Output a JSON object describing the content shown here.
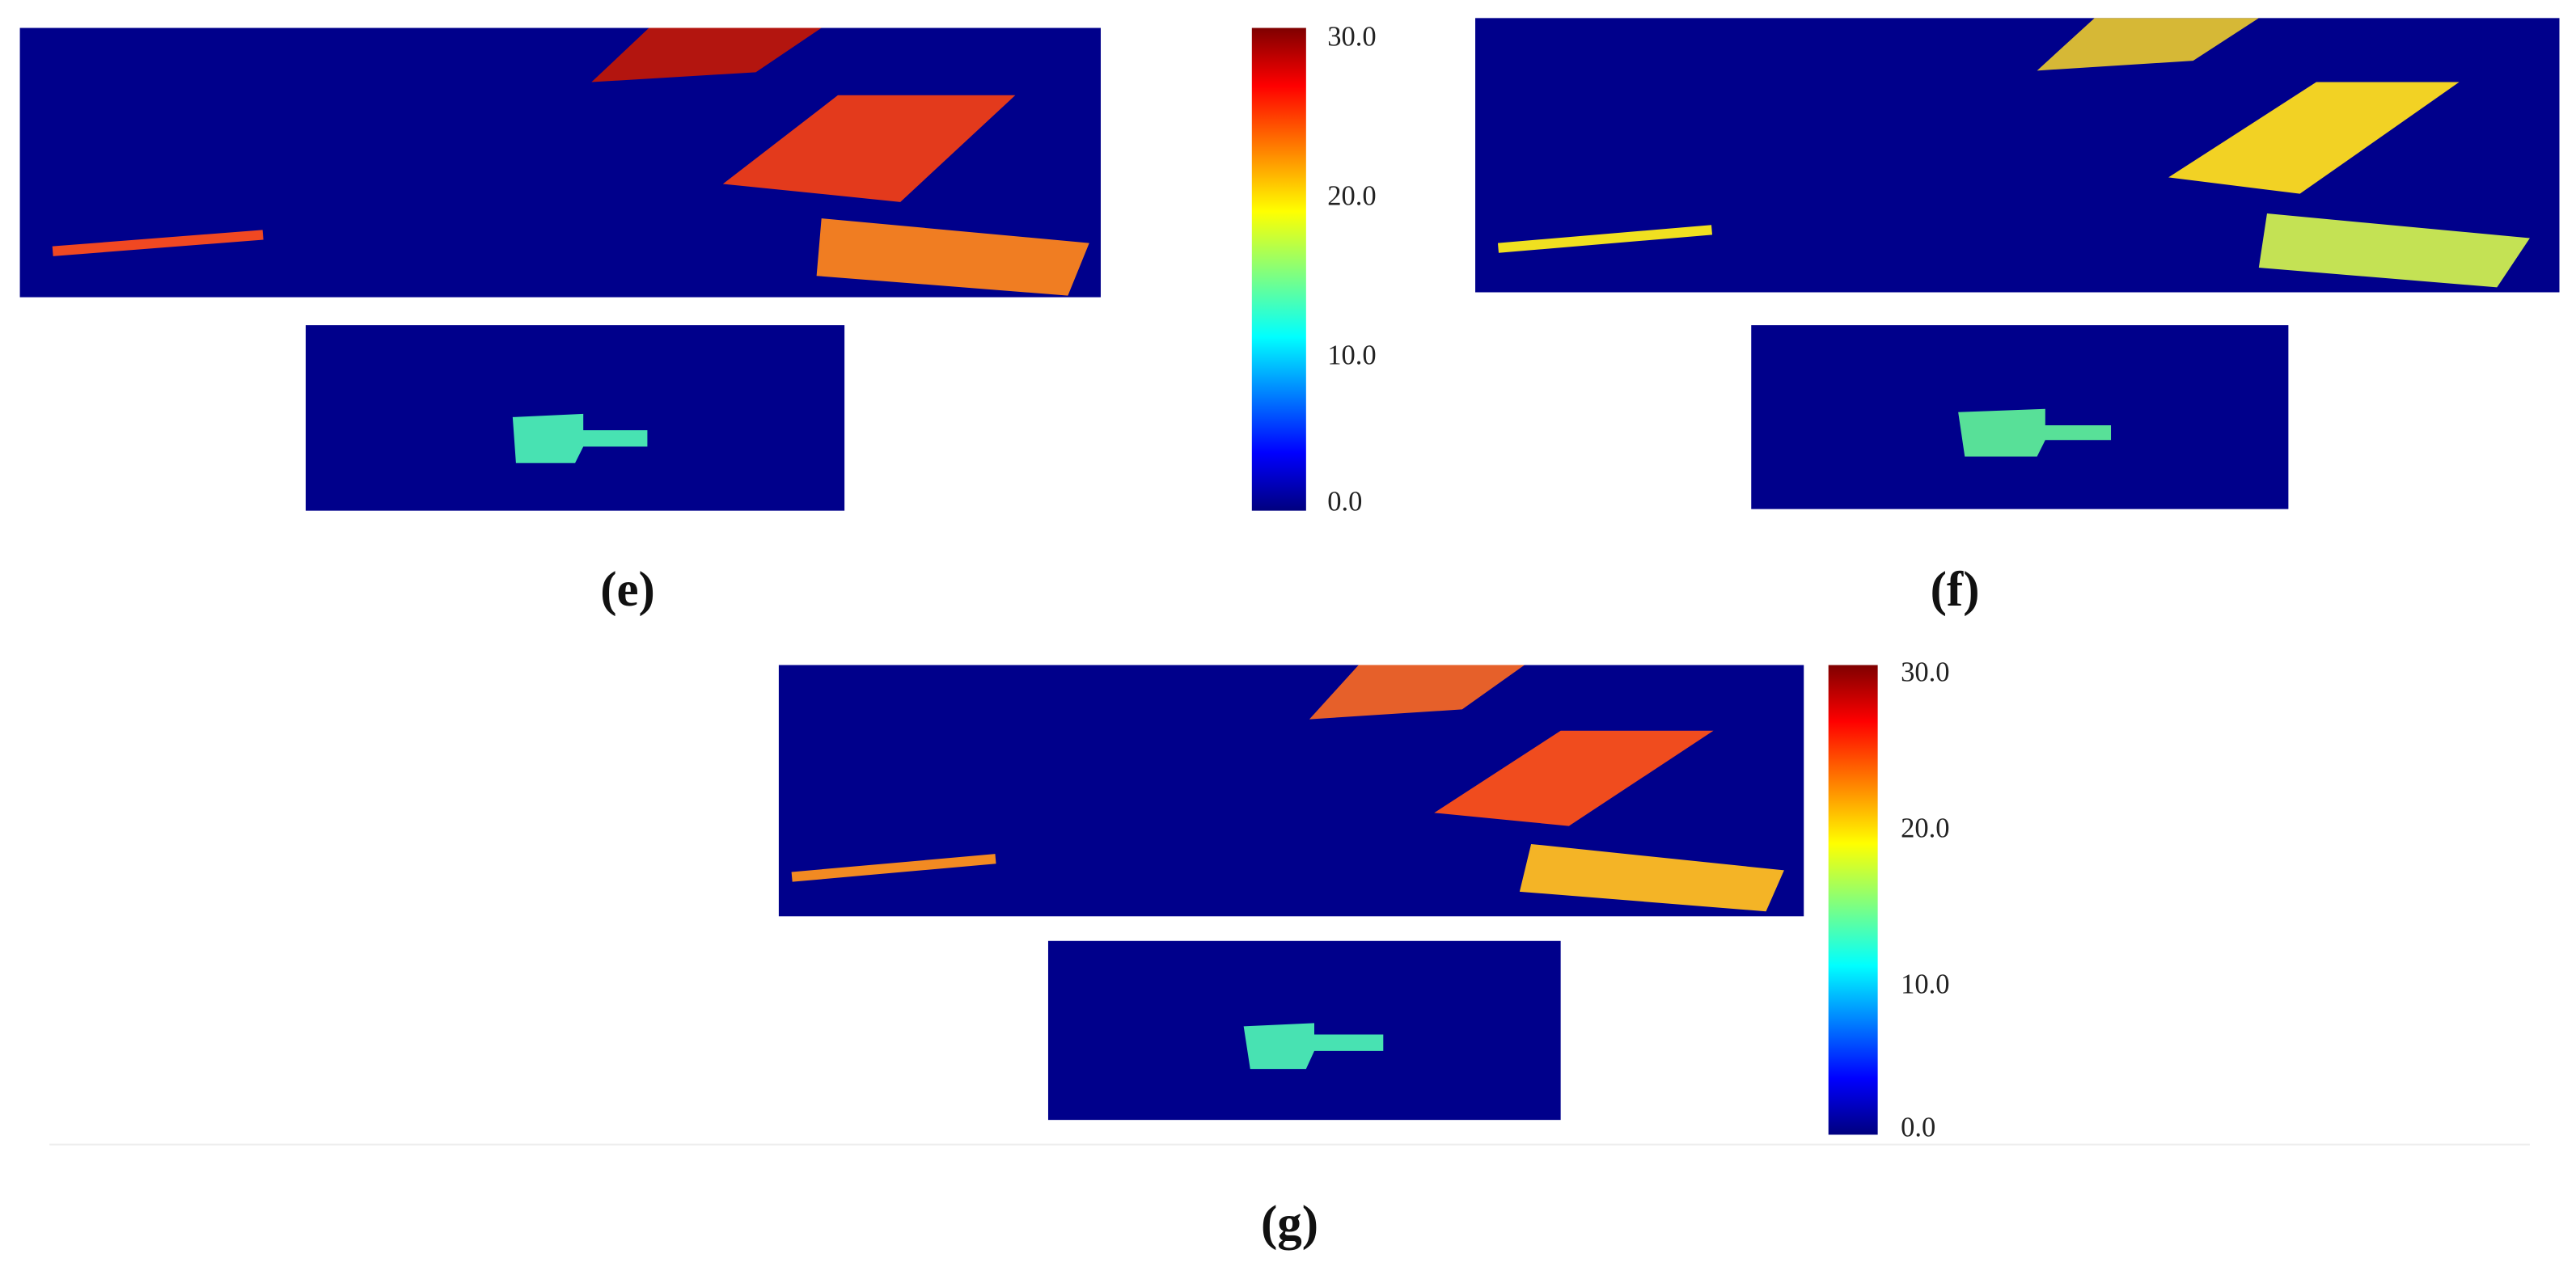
{
  "panels": [
    {
      "label": "(e)"
    },
    {
      "label": "(f)"
    },
    {
      "label": "(g)"
    }
  ],
  "colorbars": [
    {
      "ticks": [
        "30.0",
        "20.0",
        "10.0",
        "0.0"
      ]
    },
    {
      "ticks": [
        "30.0",
        "20.0",
        "10.0",
        "0.0"
      ]
    }
  ]
}
